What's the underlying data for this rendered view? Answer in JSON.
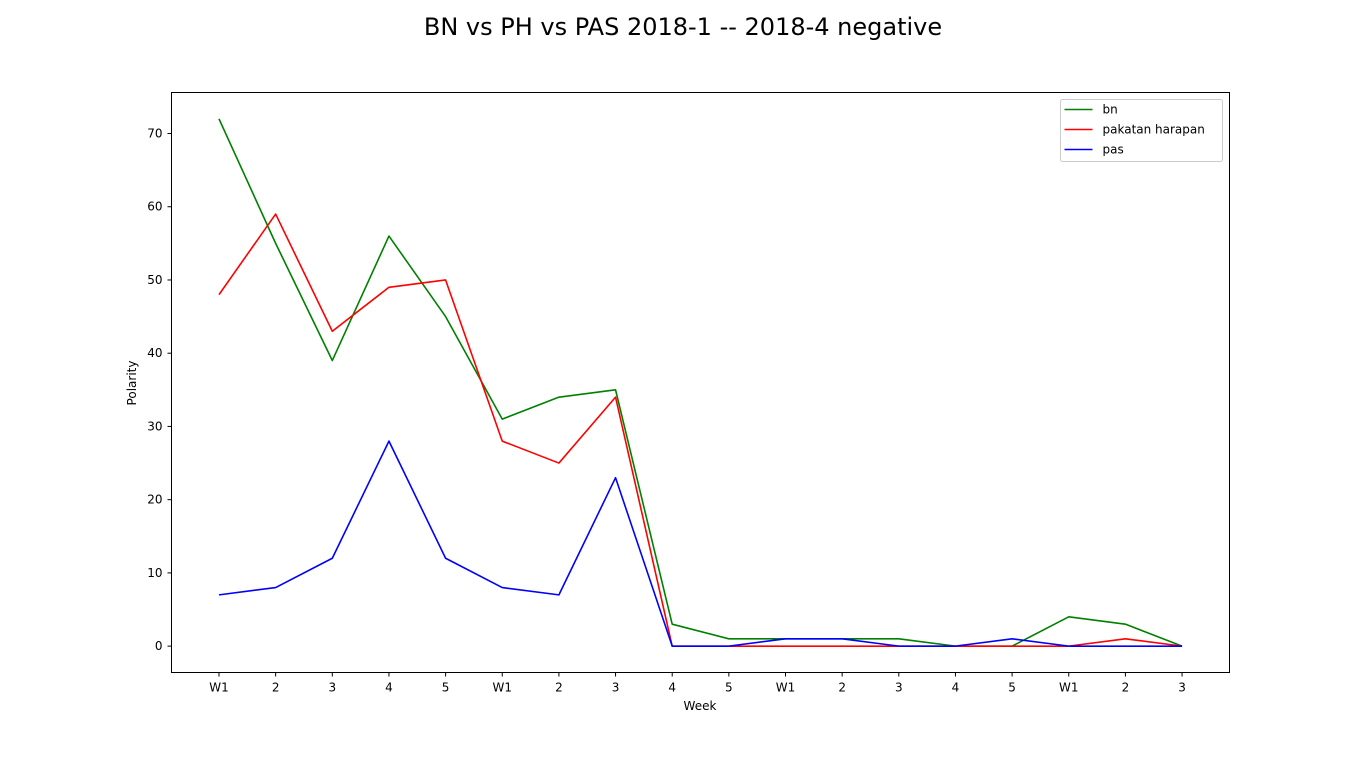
{
  "chart_data": {
    "type": "line",
    "title": "BN vs PH vs PAS 2018-1 -- 2018-4 negative",
    "xlabel": "Week",
    "ylabel": "Polarity",
    "categories": [
      "W1",
      "2",
      "3",
      "4",
      "5",
      "W1",
      "2",
      "3",
      "4",
      "5",
      "W1",
      "2",
      "3",
      "4",
      "5",
      "W1",
      "2",
      "3"
    ],
    "ylim": [
      -3.6,
      75.6
    ],
    "yticks": [
      0,
      10,
      20,
      30,
      40,
      50,
      60,
      70
    ],
    "grid": false,
    "legend_position": "top-right",
    "series": [
      {
        "name": "bn",
        "color": "#008000",
        "values": [
          72,
          55,
          39,
          56,
          45,
          31,
          34,
          35,
          3,
          1,
          1,
          1,
          1,
          0,
          0,
          4,
          3,
          0
        ]
      },
      {
        "name": "pakatan harapan",
        "color": "#ff0000",
        "values": [
          48,
          59,
          43,
          49,
          50,
          28,
          25,
          34,
          0,
          0,
          0,
          0,
          0,
          0,
          0,
          0,
          1,
          0
        ]
      },
      {
        "name": "pas",
        "color": "#0000ff",
        "values": [
          7,
          8,
          12,
          28,
          12,
          8,
          7,
          23,
          0,
          0,
          1,
          1,
          0,
          0,
          1,
          0,
          0,
          0
        ]
      }
    ]
  }
}
